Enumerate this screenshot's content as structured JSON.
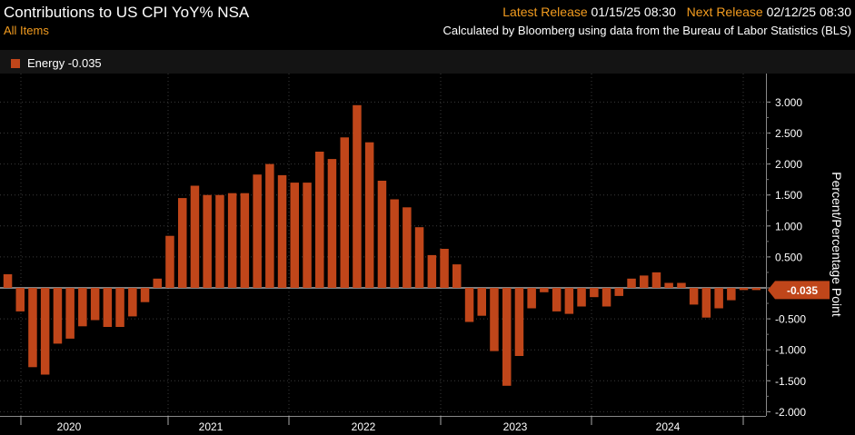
{
  "header": {
    "title": "Contributions to US CPI YoY% NSA",
    "subtitle": "All Items",
    "latest_release_label": "Latest Release",
    "latest_release_value": "01/15/25 08:30",
    "next_release_label": "Next Release",
    "next_release_value": "02/12/25 08:30",
    "source": "Calculated by Bloomberg using data from the Bureau of Labor Statistics (BLS)"
  },
  "legend": {
    "label": "Energy -0.035",
    "color": "#c0461a"
  },
  "chart_data": {
    "type": "bar",
    "title": "Contributions to US CPI YoY% NSA",
    "ylabel": "Percent/Percentage Point",
    "ylim": [
      -2.0,
      3.25
    ],
    "yticks": [
      3.0,
      2.5,
      2.0,
      1.5,
      1.0,
      0.5,
      0.0,
      -0.5,
      -1.0,
      -1.5,
      -2.0
    ],
    "ytick_labels": [
      "3.000",
      "2.500",
      "2.000",
      "1.500",
      "1.000",
      "0.500",
      "0.000",
      "-0.500",
      "-1.000",
      "-1.500",
      "-2.000"
    ],
    "year_labels": [
      "2020",
      "2021",
      "2022",
      "2023",
      "2024"
    ],
    "last_value_label": "-0.035",
    "bar_color": "#c0461a",
    "series": [
      {
        "name": "Energy",
        "categories": [
          "Dec-19",
          "Jan-20",
          "Feb-20",
          "Mar-20",
          "Apr-20",
          "May-20",
          "Jun-20",
          "Jul-20",
          "Aug-20",
          "Sep-20",
          "Oct-20",
          "Nov-20",
          "Dec-20",
          "Jan-21",
          "Feb-21",
          "Mar-21",
          "Apr-21",
          "May-21",
          "Jun-21",
          "Jul-21",
          "Aug-21",
          "Sep-21",
          "Oct-21",
          "Nov-21",
          "Dec-21",
          "Jan-22",
          "Feb-22",
          "Mar-22",
          "Apr-22",
          "May-22",
          "Jun-22",
          "Jul-22",
          "Aug-22",
          "Sep-22",
          "Oct-22",
          "Nov-22",
          "Dec-22",
          "Jan-23",
          "Feb-23",
          "Mar-23",
          "Apr-23",
          "May-23",
          "Jun-23",
          "Jul-23",
          "Aug-23",
          "Sep-23",
          "Oct-23",
          "Nov-23",
          "Dec-23",
          "Jan-24",
          "Feb-24",
          "Mar-24",
          "Apr-24",
          "May-24",
          "Jun-24",
          "Jul-24",
          "Aug-24",
          "Sep-24",
          "Oct-24",
          "Nov-24",
          "Dec-24"
        ],
        "values": [
          0.22,
          -0.38,
          -1.28,
          -1.4,
          -0.9,
          -0.82,
          -0.62,
          -0.52,
          -0.63,
          -0.63,
          -0.46,
          -0.23,
          0.15,
          0.84,
          1.45,
          1.65,
          1.5,
          1.5,
          1.53,
          1.53,
          1.83,
          2.0,
          1.82,
          1.7,
          1.7,
          2.2,
          2.08,
          2.43,
          2.95,
          2.35,
          1.73,
          1.43,
          1.3,
          0.98,
          0.53,
          0.63,
          0.38,
          -0.55,
          -0.45,
          -1.02,
          -1.58,
          -1.1,
          -0.33,
          -0.07,
          -0.38,
          -0.42,
          -0.3,
          -0.15,
          -0.3,
          -0.13,
          0.15,
          0.2,
          0.25,
          0.08,
          0.08,
          -0.27,
          -0.48,
          -0.33,
          -0.2,
          -0.035,
          -0.035
        ]
      }
    ]
  }
}
